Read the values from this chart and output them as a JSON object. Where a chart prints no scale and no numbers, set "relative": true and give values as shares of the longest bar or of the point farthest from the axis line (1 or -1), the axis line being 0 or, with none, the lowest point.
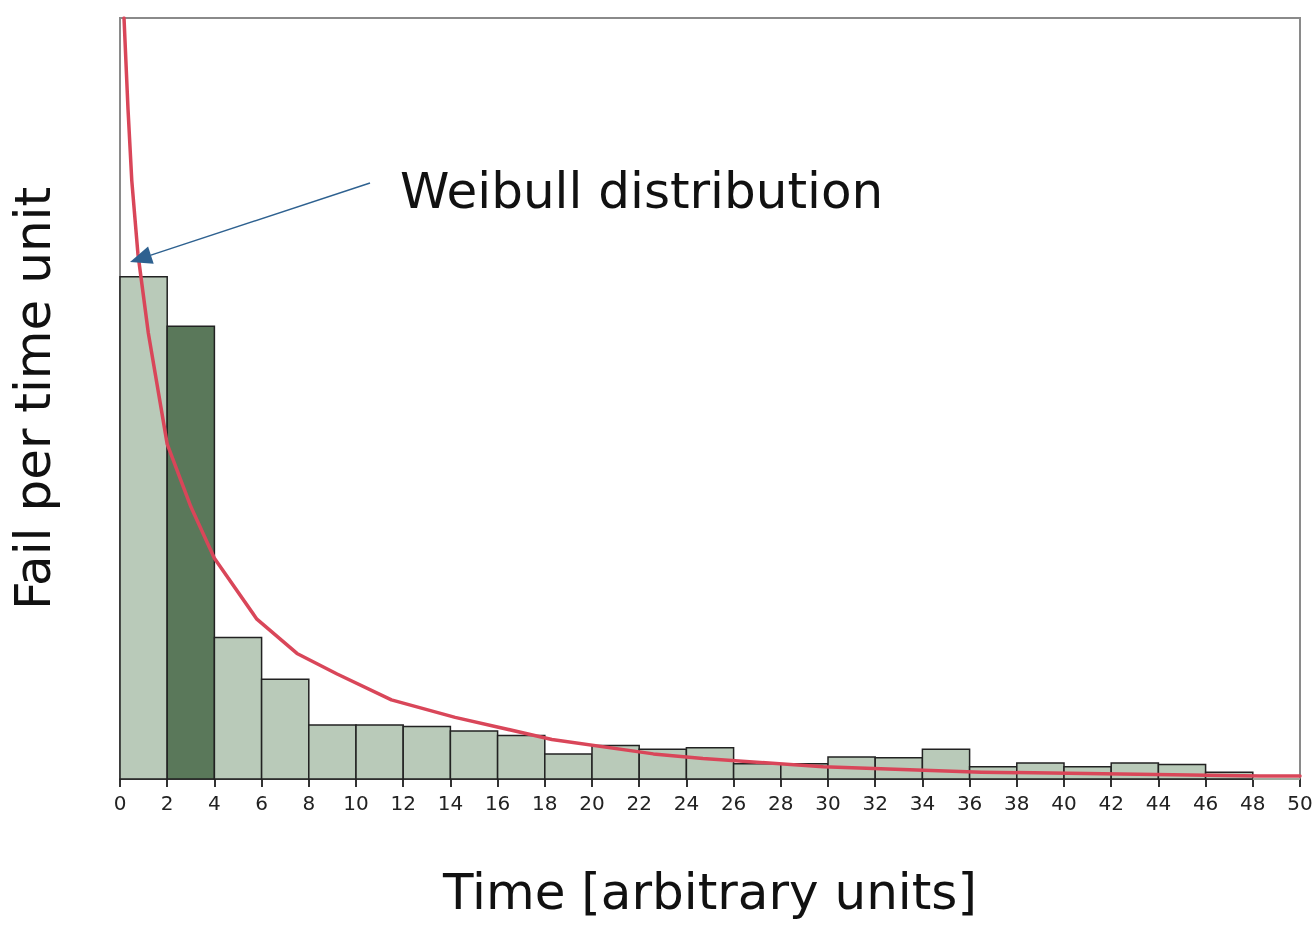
{
  "chart_data": {
    "type": "histogram",
    "xlabel": "Time [arbitrary units]",
    "ylabel": "Fail per time unit",
    "relative": true,
    "xlim": [
      0,
      50
    ],
    "xticks": [
      0,
      2,
      4,
      6,
      8,
      10,
      12,
      14,
      16,
      18,
      20,
      22,
      24,
      26,
      28,
      30,
      32,
      34,
      36,
      38,
      40,
      42,
      44,
      46,
      48,
      50
    ],
    "grid": false,
    "annotations": [
      "Weibull distribution"
    ],
    "series": [
      {
        "type": "histogram",
        "bins": [
          0,
          2,
          4,
          6,
          8,
          10,
          12,
          14,
          16,
          18,
          20,
          22,
          24,
          26,
          28,
          30,
          32,
          34,
          36,
          38,
          40,
          42,
          44,
          46,
          48,
          50
        ],
        "values": [
          0.66,
          0.595,
          0.186,
          0.131,
          0.071,
          0.071,
          0.069,
          0.063,
          0.057,
          0.033,
          0.044,
          0.039,
          0.041,
          0.02,
          0.02,
          0.029,
          0.028,
          0.039,
          0.016,
          0.021,
          0.016,
          0.021,
          0.019,
          0.009,
          0
        ],
        "colors": [
          "#b9cab9",
          "#5a785a",
          "#b9cab9",
          "#b9cab9",
          "#b9cab9",
          "#b9cab9",
          "#b9cab9",
          "#b9cab9",
          "#b9cab9",
          "#b9cab9",
          "#b9cab9",
          "#b9cab9",
          "#b9cab9",
          "#b9cab9",
          "#b9cab9",
          "#b9cab9",
          "#b9cab9",
          "#b9cab9",
          "#b9cab9",
          "#b9cab9",
          "#b9cab9",
          "#b9cab9",
          "#b9cab9",
          "#b9cab9",
          "#b9cab9"
        ]
      },
      {
        "type": "line",
        "color": "#d94659",
        "marker": "none",
        "line_style": "solid",
        "x": [
          0.17,
          0.34,
          0.5,
          0.76,
          1.2,
          2,
          3,
          4,
          5.8,
          7.5,
          9.2,
          11.5,
          14.2,
          18.3,
          22.6,
          24.7,
          29.8,
          36.5,
          48.3,
          50
        ],
        "values": [
          1,
          0.88,
          0.786,
          0.69,
          0.586,
          0.44,
          0.358,
          0.29,
          0.21,
          0.165,
          0.138,
          0.104,
          0.081,
          0.052,
          0.033,
          0.027,
          0.016,
          0.009,
          0.004,
          0.004
        ]
      }
    ]
  }
}
